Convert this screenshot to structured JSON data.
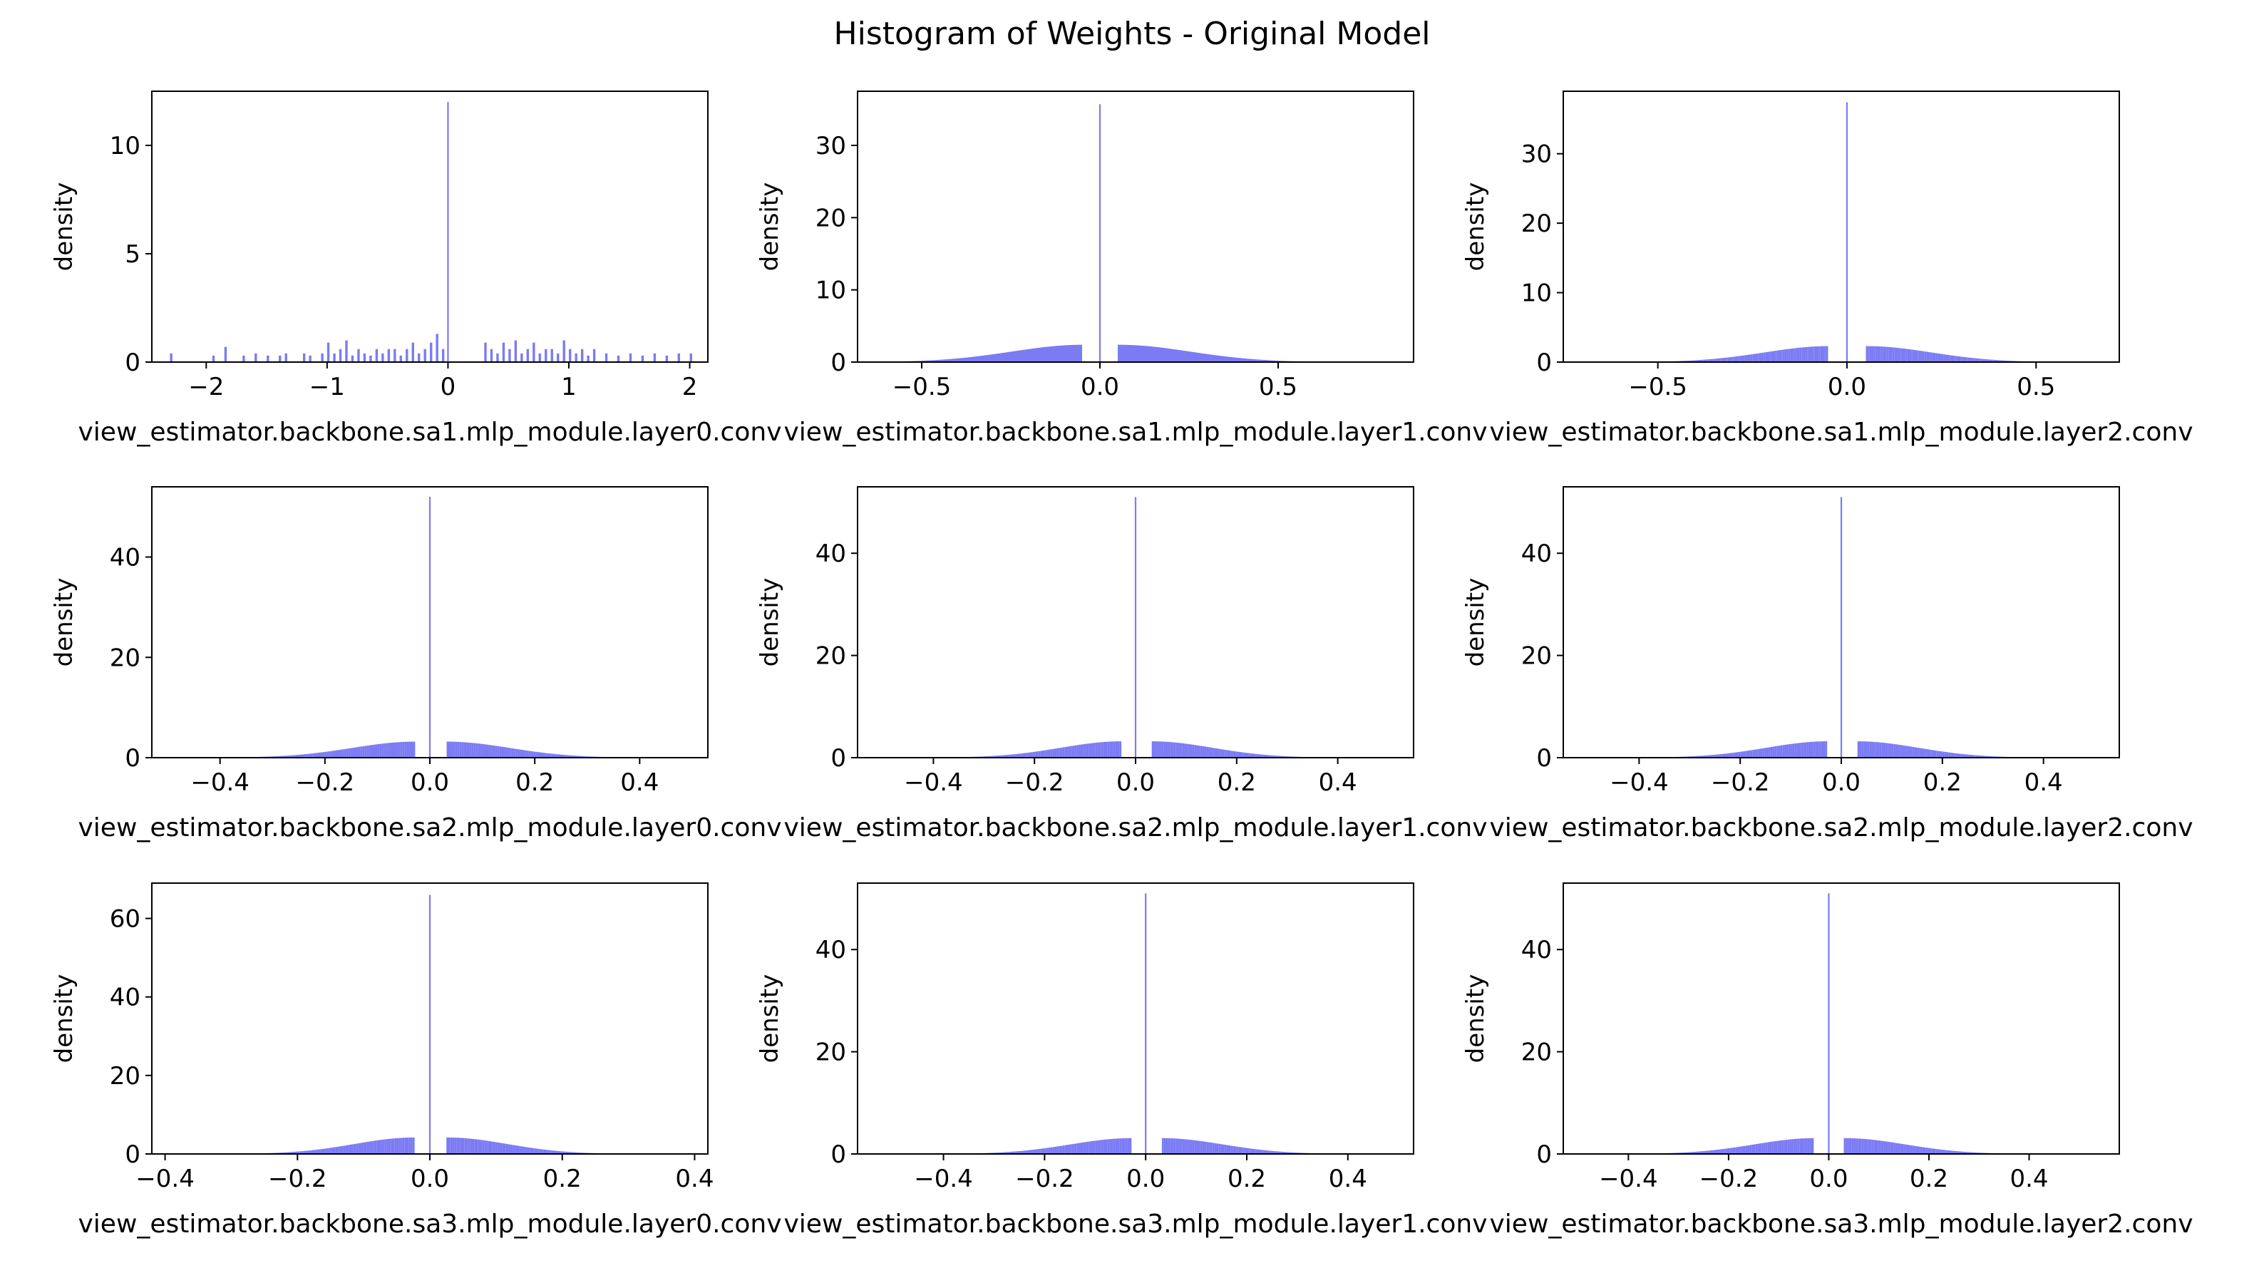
{
  "figure": {
    "title": "Histogram of Weights - Original Model",
    "bar_color": "#7b7bf4"
  },
  "chart_data": [
    {
      "type": "bar",
      "title": "",
      "xlabel": "view_estimator.backbone.sa1.mlp_module.layer0.conv",
      "ylabel": "density",
      "xlim": [
        -2.45,
        2.15
      ],
      "ylim": [
        0,
        12.5
      ],
      "xticks": [
        -2,
        -1,
        0,
        1,
        2
      ],
      "xtick_labels": [
        "−2",
        "−1",
        "0",
        "1",
        "2"
      ],
      "yticks": [
        0,
        5,
        10
      ],
      "ytick_labels": [
        "0",
        "5",
        "10"
      ],
      "grid": false,
      "bins": {
        "x": [
          -2.3,
          -1.95,
          -1.85,
          -1.7,
          -1.6,
          -1.5,
          -1.4,
          -1.35,
          -1.2,
          -1.15,
          -1.05,
          -1.0,
          -0.95,
          -0.9,
          -0.85,
          -0.8,
          -0.75,
          -0.7,
          -0.65,
          -0.6,
          -0.55,
          -0.5,
          -0.45,
          -0.4,
          -0.35,
          -0.3,
          -0.25,
          -0.2,
          -0.15,
          -0.1,
          -0.05,
          0.0,
          0.3,
          0.35,
          0.4,
          0.45,
          0.5,
          0.55,
          0.6,
          0.65,
          0.7,
          0.75,
          0.8,
          0.85,
          0.9,
          0.95,
          1.0,
          1.05,
          1.1,
          1.15,
          1.2,
          1.3,
          1.4,
          1.5,
          1.6,
          1.7,
          1.8,
          1.9,
          2.0
        ],
        "values": [
          0.4,
          0.3,
          0.7,
          0.3,
          0.4,
          0.3,
          0.3,
          0.4,
          0.4,
          0.3,
          0.4,
          0.9,
          0.4,
          0.6,
          1.0,
          0.3,
          0.6,
          0.4,
          0.3,
          0.6,
          0.4,
          0.6,
          0.6,
          0.3,
          0.6,
          0.9,
          0.4,
          0.6,
          0.9,
          1.3,
          0.6,
          12.0,
          0.9,
          0.6,
          0.4,
          0.9,
          0.6,
          1.0,
          0.4,
          0.6,
          0.9,
          0.4,
          0.6,
          0.6,
          0.4,
          1.0,
          0.6,
          0.4,
          0.6,
          0.3,
          0.6,
          0.4,
          0.3,
          0.4,
          0.3,
          0.4,
          0.3,
          0.4,
          0.4
        ]
      }
    },
    {
      "type": "bar",
      "title": "",
      "xlabel": "view_estimator.backbone.sa1.mlp_module.layer1.conv",
      "ylabel": "density",
      "xlim": [
        -0.68,
        0.88
      ],
      "ylim": [
        0,
        37.5
      ],
      "xticks": [
        -0.5,
        0.0,
        0.5
      ],
      "xtick_labels": [
        "−0.5",
        "0.0",
        "0.5"
      ],
      "yticks": [
        0,
        10,
        20,
        30
      ],
      "ytick_labels": [
        "0",
        "10",
        "20",
        "30"
      ],
      "grid": false,
      "dist": {
        "zero_bin": 35.7,
        "peak": 2.4,
        "spread": 0.2,
        "gap_left": -0.05,
        "gap_right": 0.05,
        "left_edge": -0.62,
        "right_edge": 0.82,
        "bin_width": 0.005
      }
    },
    {
      "type": "bar",
      "title": "",
      "xlabel": "view_estimator.backbone.sa1.mlp_module.layer2.conv",
      "ylabel": "density",
      "xlim": [
        -0.75,
        0.72
      ],
      "ylim": [
        0,
        39
      ],
      "xticks": [
        -0.5,
        0.0,
        0.5
      ],
      "xtick_labels": [
        "−0.5",
        "0.0",
        "0.5"
      ],
      "yticks": [
        0,
        10,
        20,
        30
      ],
      "ytick_labels": [
        "0",
        "10",
        "20",
        "30"
      ],
      "grid": false,
      "dist": {
        "zero_bin": 37.4,
        "peak": 2.3,
        "spread": 0.17,
        "gap_left": -0.05,
        "gap_right": 0.05,
        "left_edge": -0.68,
        "right_edge": 0.66,
        "bin_width": 0.005
      }
    },
    {
      "type": "bar",
      "title": "",
      "xlabel": "view_estimator.backbone.sa2.mlp_module.layer0.conv",
      "ylabel": "density",
      "xlim": [
        -0.53,
        0.53
      ],
      "ylim": [
        0,
        54
      ],
      "xticks": [
        -0.4,
        -0.2,
        0.0,
        0.2,
        0.4
      ],
      "xtick_labels": [
        "−0.4",
        "−0.2",
        "0.0",
        "0.2",
        "0.4"
      ],
      "yticks": [
        0,
        20,
        40
      ],
      "ytick_labels": [
        "0",
        "20",
        "40"
      ],
      "grid": false,
      "dist": {
        "zero_bin": 52.0,
        "peak": 3.2,
        "spread": 0.12,
        "gap_left": -0.03,
        "gap_right": 0.03,
        "left_edge": -0.48,
        "right_edge": 0.49,
        "bin_width": 0.004
      }
    },
    {
      "type": "bar",
      "title": "",
      "xlabel": "view_estimator.backbone.sa2.mlp_module.layer1.conv",
      "ylabel": "density",
      "xlim": [
        -0.55,
        0.55
      ],
      "ylim": [
        0,
        53
      ],
      "xticks": [
        -0.4,
        -0.2,
        0.0,
        0.2,
        0.4
      ],
      "xtick_labels": [
        "−0.4",
        "−0.2",
        "0.0",
        "0.2",
        "0.4"
      ],
      "yticks": [
        0,
        20,
        40
      ],
      "ytick_labels": [
        "0",
        "20",
        "40"
      ],
      "grid": false,
      "dist": {
        "zero_bin": 51.0,
        "peak": 3.2,
        "spread": 0.12,
        "gap_left": -0.03,
        "gap_right": 0.03,
        "left_edge": -0.5,
        "right_edge": 0.5,
        "bin_width": 0.004
      }
    },
    {
      "type": "bar",
      "title": "",
      "xlabel": "view_estimator.backbone.sa2.mlp_module.layer2.conv",
      "ylabel": "density",
      "xlim": [
        -0.55,
        0.55
      ],
      "ylim": [
        0,
        53
      ],
      "xticks": [
        -0.4,
        -0.2,
        0.0,
        0.2,
        0.4
      ],
      "xtick_labels": [
        "−0.4",
        "−0.2",
        "0.0",
        "0.2",
        "0.4"
      ],
      "yticks": [
        0,
        20,
        40
      ],
      "ytick_labels": [
        "0",
        "20",
        "40"
      ],
      "grid": false,
      "dist": {
        "zero_bin": 51.0,
        "peak": 3.2,
        "spread": 0.12,
        "gap_left": -0.03,
        "gap_right": 0.03,
        "left_edge": -0.5,
        "right_edge": 0.5,
        "bin_width": 0.004
      }
    },
    {
      "type": "bar",
      "title": "",
      "xlabel": "view_estimator.backbone.sa3.mlp_module.layer0.conv",
      "ylabel": "density",
      "xlim": [
        -0.42,
        0.42
      ],
      "ylim": [
        0,
        69
      ],
      "xticks": [
        -0.4,
        -0.2,
        0.0,
        0.2,
        0.4
      ],
      "xtick_labels": [
        "−0.4",
        "−0.2",
        "0.0",
        "0.2",
        "0.4"
      ],
      "yticks": [
        0,
        20,
        40,
        60
      ],
      "ytick_labels": [
        "0",
        "20",
        "40",
        "60"
      ],
      "grid": false,
      "dist": {
        "zero_bin": 66.0,
        "peak": 4.2,
        "spread": 0.09,
        "gap_left": -0.025,
        "gap_right": 0.025,
        "left_edge": -0.38,
        "right_edge": 0.38,
        "bin_width": 0.003
      }
    },
    {
      "type": "bar",
      "title": "",
      "xlabel": "view_estimator.backbone.sa3.mlp_module.layer1.conv",
      "ylabel": "density",
      "xlim": [
        -0.57,
        0.53
      ],
      "ylim": [
        0,
        53
      ],
      "xticks": [
        -0.4,
        -0.2,
        0.0,
        0.2,
        0.4
      ],
      "xtick_labels": [
        "−0.4",
        "−0.2",
        "0.0",
        "0.2",
        "0.4"
      ],
      "yticks": [
        0,
        20,
        40
      ],
      "ytick_labels": [
        "0",
        "20",
        "40"
      ],
      "grid": false,
      "dist": {
        "zero_bin": 51.0,
        "peak": 3.1,
        "spread": 0.12,
        "gap_left": -0.03,
        "gap_right": 0.03,
        "left_edge": -0.52,
        "right_edge": 0.49,
        "bin_width": 0.004
      }
    },
    {
      "type": "bar",
      "title": "",
      "xlabel": "view_estimator.backbone.sa3.mlp_module.layer2.conv",
      "ylabel": "density",
      "xlim": [
        -0.53,
        0.58
      ],
      "ylim": [
        0,
        53
      ],
      "xticks": [
        -0.4,
        -0.2,
        0.0,
        0.2,
        0.4
      ],
      "xtick_labels": [
        "−0.4",
        "−0.2",
        "0.0",
        "0.2",
        "0.4"
      ],
      "yticks": [
        0,
        20,
        40
      ],
      "ytick_labels": [
        "0",
        "20",
        "40"
      ],
      "grid": false,
      "dist": {
        "zero_bin": 51.0,
        "peak": 3.1,
        "spread": 0.12,
        "gap_left": -0.03,
        "gap_right": 0.03,
        "left_edge": -0.49,
        "right_edge": 0.53,
        "bin_width": 0.004
      }
    }
  ]
}
